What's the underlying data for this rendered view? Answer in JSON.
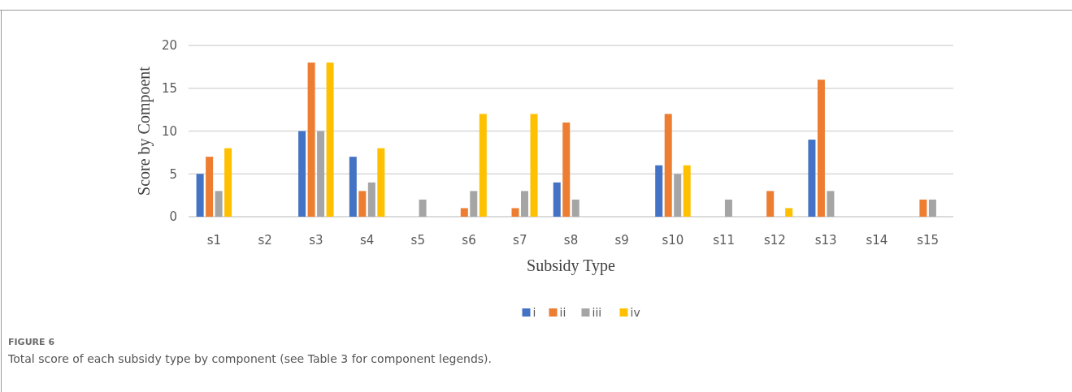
{
  "chart_data": {
    "type": "bar",
    "xlabel": "Subsidy Type",
    "ylabel": "Score by Compoent",
    "categories": [
      "s1",
      "s2",
      "s3",
      "s4",
      "s5",
      "s6",
      "s7",
      "s8",
      "s9",
      "s10",
      "s11",
      "s12",
      "s13",
      "s14",
      "s15"
    ],
    "series": [
      {
        "name": "i",
        "color": "#4472c4",
        "values": [
          5,
          0,
          10,
          7,
          0,
          0,
          0,
          4,
          0,
          6,
          0,
          0,
          9,
          0,
          0
        ]
      },
      {
        "name": "ii",
        "color": "#ed7d31",
        "values": [
          7,
          0,
          18,
          3,
          0,
          1,
          1,
          11,
          0,
          12,
          0,
          3,
          16,
          0,
          2
        ]
      },
      {
        "name": "iii",
        "color": "#a5a5a5",
        "values": [
          3,
          0,
          10,
          4,
          2,
          3,
          3,
          2,
          0,
          5,
          2,
          0,
          3,
          0,
          2
        ]
      },
      {
        "name": "iv",
        "color": "#ffc000",
        "values": [
          8,
          0,
          18,
          8,
          0,
          12,
          12,
          0,
          0,
          6,
          0,
          1,
          0,
          0,
          0
        ]
      }
    ],
    "ylim": [
      0,
      20
    ],
    "yticks": [
      0,
      5,
      10,
      15,
      20
    ],
    "grid": "y",
    "legend": "bottom",
    "annotations": [
      "FIGURE 6",
      "Total score of each subsidy type by component (see Table 3 for component legends)."
    ]
  }
}
